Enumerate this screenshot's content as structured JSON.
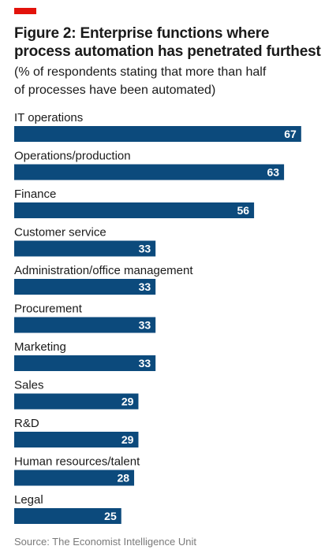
{
  "colors": {
    "accent": "#e3120b",
    "bar": "#0c4a7c",
    "source_text": "#7a7a7a"
  },
  "chart_data": {
    "type": "bar",
    "orientation": "horizontal",
    "title": "Figure 2: Enterprise functions where process automation has penetrated furthest",
    "subtitle": "(% of respondents stating that more than half of processes have been automated)",
    "source": "Source: The Economist Intelligence Unit",
    "categories": [
      "IT operations",
      "Operations/production",
      "Finance",
      "Customer service",
      "Administration/office management",
      "Procurement",
      "Marketing",
      "Sales",
      "R&D",
      "Human resources/talent",
      "Legal"
    ],
    "values": [
      67,
      63,
      56,
      33,
      33,
      33,
      33,
      29,
      29,
      28,
      25
    ],
    "xlim": [
      0,
      70
    ],
    "grid": false,
    "legend": "none",
    "data_labels": true
  }
}
